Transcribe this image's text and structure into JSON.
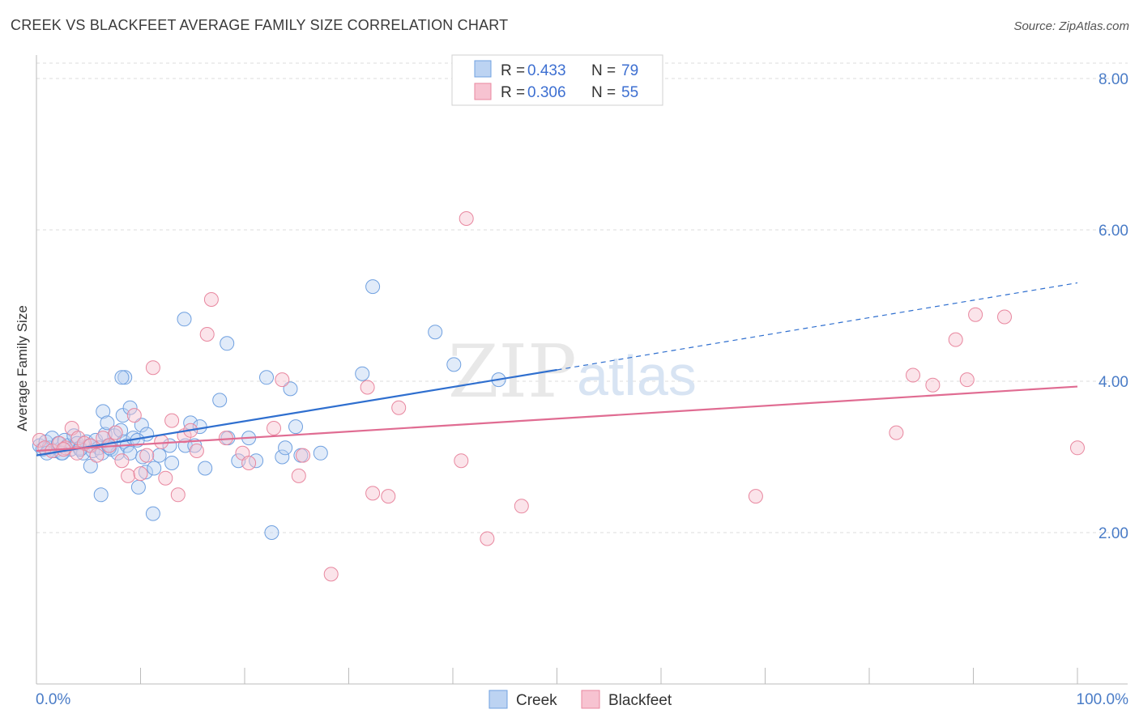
{
  "header": {
    "title": "CREEK VS BLACKFEET AVERAGE FAMILY SIZE CORRELATION CHART",
    "source": "Source: ZipAtlas.com"
  },
  "watermark": {
    "zip": "ZIP",
    "atlas": "atlas"
  },
  "chart_data": {
    "type": "scatter",
    "title": "CREEK VS BLACKFEET AVERAGE FAMILY SIZE CORRELATION CHART",
    "xlabel": "",
    "ylabel": "Average Family Size",
    "xlim": [
      0,
      100
    ],
    "ylim": [
      0,
      8.2
    ],
    "x_tick_labels": {
      "left": "0.0%",
      "right": "100.0%"
    },
    "y_ticks": [
      {
        "value": 2,
        "label": "2.00"
      },
      {
        "value": 4,
        "label": "4.00"
      },
      {
        "value": 6,
        "label": "6.00"
      },
      {
        "value": 8,
        "label": "8.00"
      }
    ],
    "grid": true,
    "legend": [
      {
        "name": "Creek",
        "r_label": "R = ",
        "r_value": "0.433",
        "n_label": "N = ",
        "n_value": "79",
        "color": "#6fa0e0",
        "fill": "#bcd3f2"
      },
      {
        "name": "Blackfeet",
        "r_label": "R = ",
        "r_value": "0.306",
        "n_label": "N = ",
        "n_value": "55",
        "color": "#e8879f",
        "fill": "#f7c3d1"
      }
    ],
    "series": [
      {
        "name": "Creek",
        "color": "#6fa0e0",
        "trend": {
          "x0": 0,
          "y0": 3.02,
          "x1": 50,
          "y1": 4.15,
          "dash_to_x": 100,
          "dash_to_y": 5.3,
          "color": "#2f6fcf"
        },
        "points": [
          [
            0.3,
            3.15
          ],
          [
            0.6,
            3.1
          ],
          [
            0.9,
            3.2
          ],
          [
            1.2,
            3.12
          ],
          [
            1.5,
            3.25
          ],
          [
            1.8,
            3.08
          ],
          [
            2.1,
            3.18
          ],
          [
            2.4,
            3.05
          ],
          [
            2.7,
            3.22
          ],
          [
            3.0,
            3.15
          ],
          [
            3.3,
            3.1
          ],
          [
            3.6,
            3.28
          ],
          [
            3.9,
            3.18
          ],
          [
            4.2,
            3.12
          ],
          [
            4.5,
            3.05
          ],
          [
            4.8,
            3.2
          ],
          [
            5.1,
            3.15
          ],
          [
            5.4,
            3.08
          ],
          [
            5.7,
            3.22
          ],
          [
            6.0,
            3.12
          ],
          [
            6.3,
            3.05
          ],
          [
            6.6,
            3.3
          ],
          [
            6.9,
            3.15
          ],
          [
            7.2,
            3.1
          ],
          [
            7.5,
            3.28
          ],
          [
            7.8,
            3.05
          ],
          [
            8.1,
            3.35
          ],
          [
            8.4,
            3.2
          ],
          [
            8.7,
            3.15
          ],
          [
            9.0,
            3.05
          ],
          [
            9.3,
            3.25
          ],
          [
            6.4,
            3.6
          ],
          [
            6.8,
            3.45
          ],
          [
            8.3,
            3.55
          ],
          [
            9.0,
            3.65
          ],
          [
            10.1,
            3.42
          ],
          [
            10.6,
            3.3
          ],
          [
            8.5,
            4.05
          ],
          [
            8.2,
            4.05
          ],
          [
            10.2,
            3.0
          ],
          [
            10.5,
            2.8
          ],
          [
            9.8,
            2.6
          ],
          [
            11.3,
            2.85
          ],
          [
            11.8,
            3.02
          ],
          [
            12.8,
            3.15
          ],
          [
            13.0,
            2.92
          ],
          [
            14.3,
            3.15
          ],
          [
            14.8,
            3.45
          ],
          [
            15.2,
            3.15
          ],
          [
            15.7,
            3.4
          ],
          [
            16.2,
            2.85
          ],
          [
            14.2,
            4.82
          ],
          [
            17.6,
            3.75
          ],
          [
            18.3,
            4.5
          ],
          [
            18.4,
            3.25
          ],
          [
            19.4,
            2.95
          ],
          [
            20.4,
            3.25
          ],
          [
            21.1,
            2.95
          ],
          [
            22.1,
            4.05
          ],
          [
            22.6,
            2.0
          ],
          [
            23.6,
            3.0
          ],
          [
            23.9,
            3.12
          ],
          [
            24.4,
            3.9
          ],
          [
            24.9,
            3.4
          ],
          [
            25.4,
            3.02
          ],
          [
            27.3,
            3.05
          ],
          [
            31.3,
            4.1
          ],
          [
            32.3,
            5.25
          ],
          [
            38.3,
            4.65
          ],
          [
            40.1,
            4.22
          ],
          [
            44.4,
            4.02
          ],
          [
            6.2,
            2.5
          ],
          [
            11.2,
            2.25
          ],
          [
            5.2,
            2.88
          ],
          [
            2.5,
            3.05
          ],
          [
            4.2,
            3.1
          ],
          [
            1.0,
            3.05
          ],
          [
            7.0,
            3.12
          ],
          [
            9.7,
            3.22
          ]
        ]
      },
      {
        "name": "Blackfeet",
        "color": "#e8879f",
        "trend": {
          "x0": 0,
          "y0": 3.08,
          "x1": 100,
          "y1": 3.93,
          "color": "#e06c92"
        },
        "points": [
          [
            0.3,
            3.22
          ],
          [
            0.8,
            3.12
          ],
          [
            1.5,
            3.08
          ],
          [
            2.2,
            3.18
          ],
          [
            2.8,
            3.12
          ],
          [
            3.4,
            3.38
          ],
          [
            4.0,
            3.25
          ],
          [
            4.6,
            3.18
          ],
          [
            5.2,
            3.15
          ],
          [
            5.8,
            3.02
          ],
          [
            6.4,
            3.25
          ],
          [
            7.0,
            3.15
          ],
          [
            7.6,
            3.32
          ],
          [
            8.2,
            2.95
          ],
          [
            8.8,
            2.75
          ],
          [
            9.4,
            3.55
          ],
          [
            10.0,
            2.78
          ],
          [
            10.6,
            3.02
          ],
          [
            11.2,
            4.18
          ],
          [
            12.4,
            2.72
          ],
          [
            13.0,
            3.48
          ],
          [
            13.6,
            2.5
          ],
          [
            14.2,
            3.28
          ],
          [
            14.8,
            3.35
          ],
          [
            15.4,
            3.08
          ],
          [
            16.4,
            4.62
          ],
          [
            16.8,
            5.08
          ],
          [
            18.2,
            3.25
          ],
          [
            19.8,
            3.05
          ],
          [
            20.4,
            2.92
          ],
          [
            22.8,
            3.38
          ],
          [
            23.6,
            4.02
          ],
          [
            25.2,
            2.75
          ],
          [
            25.6,
            3.02
          ],
          [
            28.3,
            1.45
          ],
          [
            31.8,
            3.92
          ],
          [
            32.3,
            2.52
          ],
          [
            33.8,
            2.48
          ],
          [
            34.8,
            3.65
          ],
          [
            40.8,
            2.95
          ],
          [
            41.3,
            6.15
          ],
          [
            43.3,
            1.92
          ],
          [
            46.6,
            2.35
          ],
          [
            69.1,
            2.48
          ],
          [
            82.6,
            3.32
          ],
          [
            84.2,
            4.08
          ],
          [
            86.1,
            3.95
          ],
          [
            88.3,
            4.55
          ],
          [
            89.4,
            4.02
          ],
          [
            90.2,
            4.88
          ],
          [
            93.0,
            4.85
          ],
          [
            100.0,
            3.12
          ],
          [
            2.6,
            3.1
          ],
          [
            3.9,
            3.05
          ],
          [
            12.0,
            3.2
          ]
        ]
      }
    ]
  }
}
